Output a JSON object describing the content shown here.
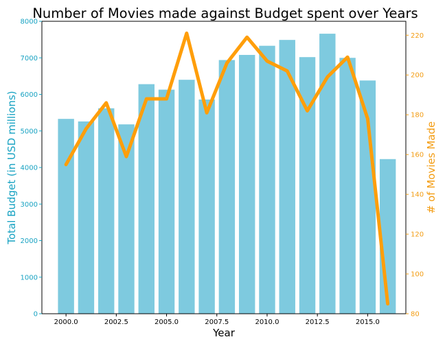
{
  "chart_data": {
    "type": "bar+line",
    "title": "Number of Movies made against Budget spent over Years",
    "xlabel": "Year",
    "ylabel_left": "Total Budget (in USD millions)",
    "ylabel_right": "# of Movies Made",
    "xlim": [
      1998.8,
      2016.9
    ],
    "ylim_left": [
      0,
      8000
    ],
    "ylim_right": [
      80,
      227
    ],
    "x_ticks": [
      "2000.0",
      "2002.5",
      "2005.0",
      "2007.5",
      "2010.0",
      "2012.5",
      "2015.0"
    ],
    "x_tick_values": [
      2000,
      2002.5,
      2005,
      2007.5,
      2010,
      2012.5,
      2015
    ],
    "y_left_ticks": [
      0,
      1000,
      2000,
      3000,
      4000,
      5000,
      6000,
      7000,
      8000
    ],
    "y_right_ticks": [
      80,
      100,
      120,
      140,
      160,
      180,
      200,
      220
    ],
    "years": [
      2000,
      2001,
      2002,
      2003,
      2004,
      2005,
      2006,
      2007,
      2008,
      2009,
      2010,
      2011,
      2012,
      2013,
      2014,
      2015,
      2016
    ],
    "series": [
      {
        "name": "Total Budget",
        "kind": "bar",
        "axis": "left",
        "color": "#7ecadf",
        "values": [
          5330,
          5260,
          5620,
          5180,
          6280,
          6130,
          6400,
          5860,
          6940,
          7080,
          7330,
          7490,
          7020,
          7660,
          7000,
          6380,
          4230
        ]
      },
      {
        "name": "# of Movies",
        "kind": "line",
        "axis": "right",
        "color": "#ff9e0a",
        "values": [
          155,
          173,
          186,
          159,
          188,
          188,
          221,
          181,
          206,
          219,
          207,
          202,
          182,
          199,
          209,
          178,
          85
        ]
      }
    ],
    "left_axis_color": "#17a2c2",
    "right_axis_color": "#f39c12"
  }
}
